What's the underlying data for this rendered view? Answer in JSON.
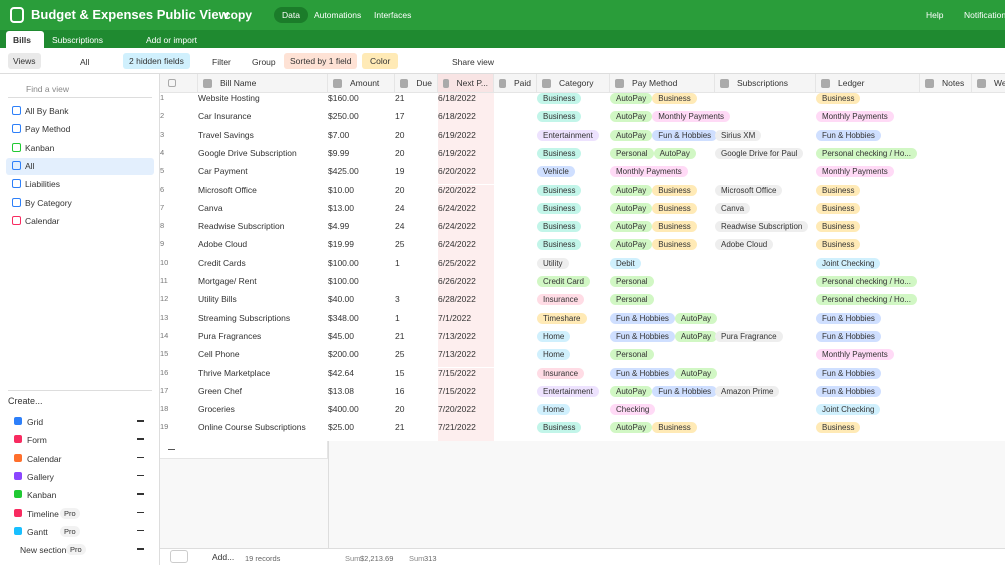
{
  "header": {
    "title": "Budget & Expenses Public View",
    "badge": "copy",
    "tabs": [
      "Data",
      "Automations",
      "Interfaces"
    ],
    "help": "Help",
    "notifications": "Notification"
  },
  "tables": {
    "tabs": [
      "Bills",
      "Subscriptions"
    ],
    "add": "Add or import"
  },
  "toolbar": {
    "views": "Views",
    "view": "All",
    "hidden": "2 hidden fields",
    "filter": "Filter",
    "group": "Group",
    "sort": "Sorted by 1 field",
    "color": "Color",
    "share": "Share view"
  },
  "sidebar": {
    "search": "Find a view",
    "views": [
      {
        "name": "All By Bank",
        "color": "#2d7ff9"
      },
      {
        "name": "Pay Method",
        "color": "#2d7ff9"
      },
      {
        "name": "Kanban",
        "color": "#20c933"
      },
      {
        "name": "All",
        "color": "#2d7ff9"
      },
      {
        "name": "Liabilities",
        "color": "#2d7ff9"
      },
      {
        "name": "By Category",
        "color": "#2d7ff9"
      },
      {
        "name": "Calendar",
        "color": "#f82b60"
      }
    ],
    "create": "Create...",
    "create_items": [
      {
        "name": "Grid",
        "color": "#2d7ff9"
      },
      {
        "name": "Form",
        "color": "#f82b60"
      },
      {
        "name": "Calendar",
        "color": "#ff6f2c"
      },
      {
        "name": "Gallery",
        "color": "#8b46ff"
      },
      {
        "name": "Kanban",
        "color": "#20c933"
      },
      {
        "name": "Timeline",
        "color": "#f82b60",
        "pro": "Pro"
      },
      {
        "name": "Gantt",
        "color": "#18bfff",
        "pro": "Pro"
      },
      {
        "name": "New section",
        "pro": "Pro"
      }
    ]
  },
  "table": {
    "columns": [
      "Bill Name",
      "Amount",
      "Due",
      "Next P...",
      "Paid",
      "Category",
      "Pay Method",
      "Subscriptions",
      "Ledger",
      "Notes",
      "Webs"
    ],
    "rows": [
      {
        "n": 1,
        "name": "Website Hosting",
        "amount": "$160.00",
        "due": 21,
        "next": "6/18/2022",
        "category": {
          "t": "Business",
          "c": "#c2f5e9"
        },
        "pay": [
          {
            "t": "AutoPay",
            "c": "#d1f7c4"
          },
          {
            "t": "Business",
            "c": "#ffeab6"
          }
        ],
        "ledger": [
          {
            "t": "Business",
            "c": "#ffeab6"
          }
        ]
      },
      {
        "n": 2,
        "name": "Car Insurance",
        "amount": "$250.00",
        "due": 17,
        "next": "6/18/2022",
        "category": {
          "t": "Business",
          "c": "#c2f5e9"
        },
        "pay": [
          {
            "t": "AutoPay",
            "c": "#d1f7c4"
          },
          {
            "t": "Monthly Payments",
            "c": "#ffdaf6"
          }
        ],
        "ledger": [
          {
            "t": "Monthly Payments",
            "c": "#ffdaf6"
          }
        ]
      },
      {
        "n": 3,
        "name": "Travel Savings",
        "amount": "$7.00",
        "due": 20,
        "next": "6/19/2022",
        "category": {
          "t": "Entertainment",
          "c": "#ede2fe"
        },
        "pay": [
          {
            "t": "AutoPay",
            "c": "#d1f7c4"
          },
          {
            "t": "Fun & Hobbies",
            "c": "#cfdfff"
          }
        ],
        "subs": [
          {
            "t": "Sirius XM",
            "c": "#eeeeee"
          }
        ],
        "ledger": [
          {
            "t": "Fun & Hobbies",
            "c": "#cfdfff"
          }
        ]
      },
      {
        "n": 4,
        "name": "Google Drive Subscription",
        "amount": "$9.99",
        "due": 20,
        "next": "6/19/2022",
        "category": {
          "t": "Business",
          "c": "#c2f5e9"
        },
        "pay": [
          {
            "t": "Personal",
            "c": "#d1f7c4"
          },
          {
            "t": "AutoPay",
            "c": "#d1f7c4"
          }
        ],
        "subs": [
          {
            "t": "Google Drive for Paul",
            "c": "#eeeeee"
          }
        ],
        "ledger": [
          {
            "t": "Personal checking / Ho...",
            "c": "#d1f7c4"
          }
        ]
      },
      {
        "n": 5,
        "name": "Car Payment",
        "amount": "$425.00",
        "due": 19,
        "next": "6/20/2022",
        "category": {
          "t": "Vehicle",
          "c": "#cfdfff"
        },
        "pay": [
          {
            "t": "Monthly Payments",
            "c": "#ffdaf6"
          }
        ],
        "ledger": [
          {
            "t": "Monthly Payments",
            "c": "#ffdaf6"
          }
        ]
      },
      {
        "n": 6,
        "name": "Microsoft Office",
        "amount": "$10.00",
        "due": 20,
        "next": "6/20/2022",
        "category": {
          "t": "Business",
          "c": "#c2f5e9"
        },
        "pay": [
          {
            "t": "AutoPay",
            "c": "#d1f7c4"
          },
          {
            "t": "Business",
            "c": "#ffeab6"
          }
        ],
        "subs": [
          {
            "t": "Microsoft Office",
            "c": "#eeeeee"
          }
        ],
        "ledger": [
          {
            "t": "Business",
            "c": "#ffeab6"
          }
        ]
      },
      {
        "n": 7,
        "name": "Canva",
        "amount": "$13.00",
        "due": 24,
        "next": "6/24/2022",
        "category": {
          "t": "Business",
          "c": "#c2f5e9"
        },
        "pay": [
          {
            "t": "AutoPay",
            "c": "#d1f7c4"
          },
          {
            "t": "Business",
            "c": "#ffeab6"
          }
        ],
        "subs": [
          {
            "t": "Canva",
            "c": "#eeeeee"
          }
        ],
        "ledger": [
          {
            "t": "Business",
            "c": "#ffeab6"
          }
        ]
      },
      {
        "n": 8,
        "name": "Readwise Subscription",
        "amount": "$4.99",
        "due": 24,
        "next": "6/24/2022",
        "category": {
          "t": "Business",
          "c": "#c2f5e9"
        },
        "pay": [
          {
            "t": "AutoPay",
            "c": "#d1f7c4"
          },
          {
            "t": "Business",
            "c": "#ffeab6"
          }
        ],
        "subs": [
          {
            "t": "Readwise Subscription",
            "c": "#eeeeee"
          }
        ],
        "ledger": [
          {
            "t": "Business",
            "c": "#ffeab6"
          }
        ]
      },
      {
        "n": 9,
        "name": "Adobe Cloud",
        "amount": "$19.99",
        "due": 25,
        "next": "6/24/2022",
        "category": {
          "t": "Business",
          "c": "#c2f5e9"
        },
        "pay": [
          {
            "t": "AutoPay",
            "c": "#d1f7c4"
          },
          {
            "t": "Business",
            "c": "#ffeab6"
          }
        ],
        "subs": [
          {
            "t": "Adobe Cloud",
            "c": "#eeeeee"
          }
        ],
        "ledger": [
          {
            "t": "Business",
            "c": "#ffeab6"
          }
        ]
      },
      {
        "n": 10,
        "name": "Credit Cards",
        "amount": "$100.00",
        "due": 1,
        "next": "6/25/2022",
        "category": {
          "t": "Utility",
          "c": "#eeeeee"
        },
        "pay": [
          {
            "t": "Debit",
            "c": "#d0f0fd"
          }
        ],
        "ledger": [
          {
            "t": "Joint Checking",
            "c": "#d0f0fd"
          }
        ]
      },
      {
        "n": 11,
        "name": "Mortgage/ Rent",
        "amount": "$100.00",
        "due": null,
        "next": "6/26/2022",
        "category": {
          "t": "Credit Card",
          "c": "#d1f7c4"
        },
        "pay": [
          {
            "t": "Personal",
            "c": "#d1f7c4"
          }
        ],
        "ledger": [
          {
            "t": "Personal checking / Ho...",
            "c": "#d1f7c4"
          }
        ]
      },
      {
        "n": 12,
        "name": "Utility Bills",
        "amount": "$40.00",
        "due": 3,
        "next": "6/28/2022",
        "category": {
          "t": "Insurance",
          "c": "#ffdce5"
        },
        "pay": [
          {
            "t": "Personal",
            "c": "#d1f7c4"
          }
        ],
        "ledger": [
          {
            "t": "Personal checking / Ho...",
            "c": "#d1f7c4"
          }
        ]
      },
      {
        "n": 13,
        "name": "Streaming Subscriptions",
        "amount": "$348.00",
        "due": 1,
        "next": "7/1/2022",
        "category": {
          "t": "Timeshare",
          "c": "#ffeab6"
        },
        "pay": [
          {
            "t": "Fun & Hobbies",
            "c": "#cfdfff"
          },
          {
            "t": "AutoPay",
            "c": "#d1f7c4"
          }
        ],
        "ledger": [
          {
            "t": "Fun & Hobbies",
            "c": "#cfdfff"
          }
        ]
      },
      {
        "n": 14,
        "name": "Pura Fragrances",
        "amount": "$45.00",
        "due": 21,
        "next": "7/13/2022",
        "category": {
          "t": "Home",
          "c": "#d0f0fd"
        },
        "pay": [
          {
            "t": "Fun & Hobbies",
            "c": "#cfdfff"
          },
          {
            "t": "AutoPay",
            "c": "#d1f7c4"
          }
        ],
        "subs": [
          {
            "t": "Pura Fragrance",
            "c": "#eeeeee"
          }
        ],
        "ledger": [
          {
            "t": "Fun & Hobbies",
            "c": "#cfdfff"
          }
        ]
      },
      {
        "n": 15,
        "name": "Cell Phone",
        "amount": "$200.00",
        "due": 25,
        "next": "7/13/2022",
        "category": {
          "t": "Home",
          "c": "#d0f0fd"
        },
        "pay": [
          {
            "t": "Personal",
            "c": "#d1f7c4"
          }
        ],
        "ledger": [
          {
            "t": "Monthly Payments",
            "c": "#ffdaf6"
          }
        ]
      },
      {
        "n": 16,
        "name": "Thrive Marketplace",
        "amount": "$42.64",
        "due": 15,
        "next": "7/15/2022",
        "category": {
          "t": "Insurance",
          "c": "#ffdce5"
        },
        "pay": [
          {
            "t": "Fun & Hobbies",
            "c": "#cfdfff"
          },
          {
            "t": "AutoPay",
            "c": "#d1f7c4"
          }
        ],
        "ledger": [
          {
            "t": "Fun & Hobbies",
            "c": "#cfdfff"
          }
        ]
      },
      {
        "n": 17,
        "name": "Green Chef",
        "amount": "$13.08",
        "due": 16,
        "next": "7/15/2022",
        "category": {
          "t": "Entertainment",
          "c": "#ede2fe"
        },
        "pay": [
          {
            "t": "AutoPay",
            "c": "#d1f7c4"
          },
          {
            "t": "Fun & Hobbies",
            "c": "#cfdfff"
          }
        ],
        "subs": [
          {
            "t": "Amazon Prime",
            "c": "#eeeeee"
          }
        ],
        "ledger": [
          {
            "t": "Fun & Hobbies",
            "c": "#cfdfff"
          }
        ]
      },
      {
        "n": 18,
        "name": "Groceries",
        "amount": "$400.00",
        "due": 20,
        "next": "7/20/2022",
        "category": {
          "t": "Home",
          "c": "#d0f0fd"
        },
        "pay": [
          {
            "t": "Checking",
            "c": "#ffdaf6"
          }
        ],
        "ledger": [
          {
            "t": "Joint Checking",
            "c": "#d0f0fd"
          }
        ]
      },
      {
        "n": 19,
        "name": "Online Course Subscriptions",
        "amount": "$25.00",
        "due": 21,
        "next": "7/21/2022",
        "category": {
          "t": "Business",
          "c": "#c2f5e9"
        },
        "pay": [
          {
            "t": "AutoPay",
            "c": "#d1f7c4"
          },
          {
            "t": "Business",
            "c": "#ffeab6"
          }
        ],
        "ledger": [
          {
            "t": "Business",
            "c": "#ffeab6"
          }
        ]
      }
    ],
    "footer": {
      "add": "Add...",
      "records": "19 records",
      "sum_label": "Sum",
      "sum_amount": "$2,213.69",
      "sum_due": "313"
    }
  }
}
